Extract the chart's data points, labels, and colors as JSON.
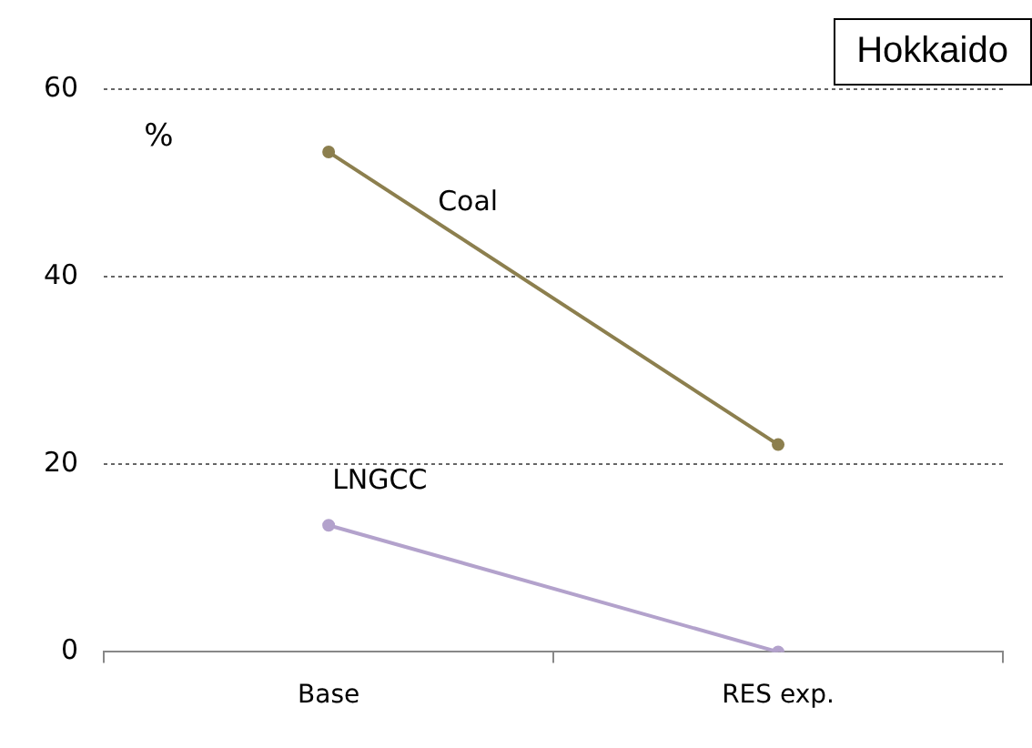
{
  "chart_data": {
    "type": "line",
    "title": "Hokkaido",
    "ylabel": "%",
    "categories": [
      "Base",
      "RES exp."
    ],
    "series": [
      {
        "name": "Coal",
        "color": "#8c7f4e",
        "values": [
          53.3,
          22.1
        ]
      },
      {
        "name": "LNGCC",
        "color": "#b3a2cc",
        "values": [
          13.5,
          0
        ]
      }
    ],
    "ylim": [
      0,
      60
    ],
    "yticks": [
      0,
      20,
      40,
      60
    ],
    "grid": "y",
    "legend": false,
    "marker": "circle",
    "line_style": "solid"
  }
}
